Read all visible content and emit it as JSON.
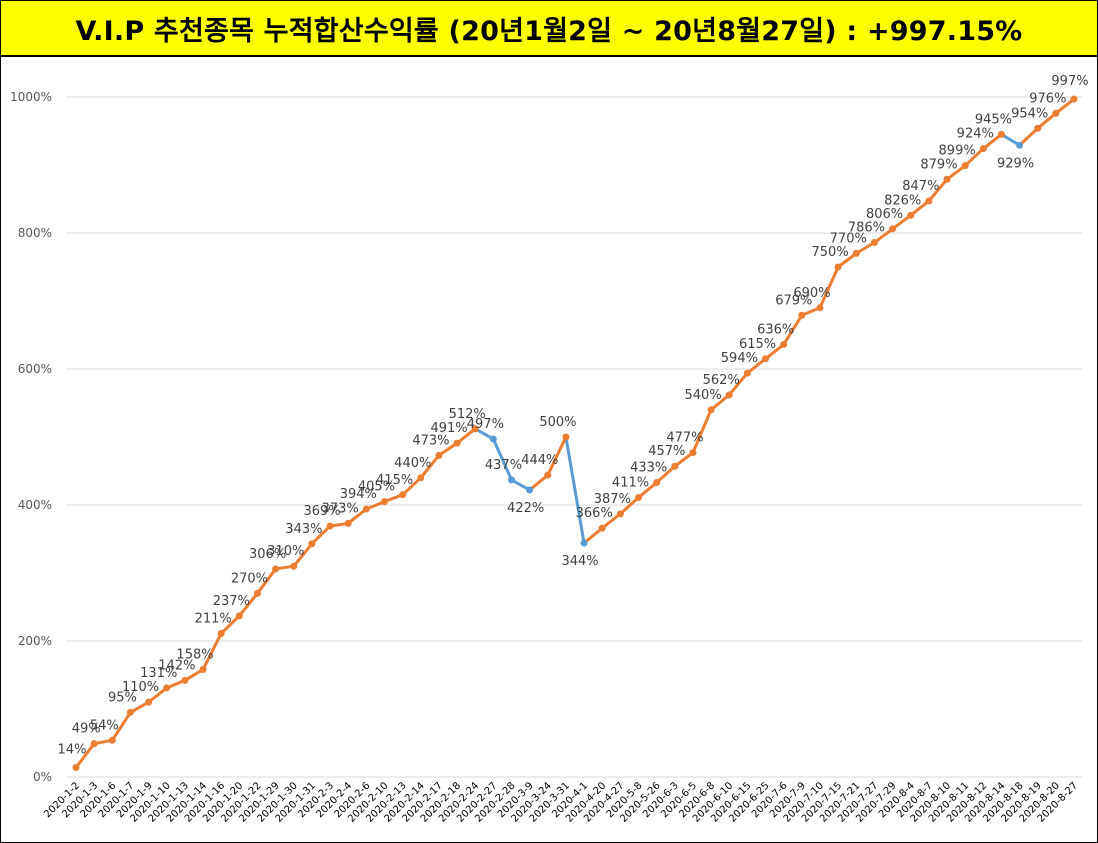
{
  "header": {
    "title": "V.I.P 추천종목 누적합산수익률 (20년1월2일 ~ 20년8월27일) : +997.15%"
  },
  "colors": {
    "title_background": "#ffff00",
    "line_up": "#ed7d31",
    "line_down": "#5b9bd5",
    "gridline": "#d9d9d9"
  },
  "chart_data": {
    "type": "line",
    "title": "",
    "xlabel": "",
    "ylabel": "",
    "ylim": [
      0,
      1000
    ],
    "yticks": [
      "0%",
      "200%",
      "400%",
      "600%",
      "800%",
      "1000%"
    ],
    "ytick_values": [
      0,
      200,
      400,
      600,
      800,
      1000
    ],
    "grid": true,
    "legend": "none",
    "segment_coloring": "orange for rising segments, blue for falling segments",
    "categories": [
      "2020-1-2",
      "2020-1-3",
      "2020-1-6",
      "2020-1-7",
      "2020-1-9",
      "2020-1-10",
      "2020-1-13",
      "2020-1-14",
      "2020-1-16",
      "2020-1-20",
      "2020-1-22",
      "2020-1-29",
      "2020-1-30",
      "2020-1-31",
      "2020-2-3",
      "2020-2-4",
      "2020-2-6",
      "2020-2-10",
      "2020-2-13",
      "2020-2-14",
      "2020-2-17",
      "2020-2-18",
      "2020-2-24",
      "2020-2-27",
      "2020-2-28",
      "2020-3-9",
      "2020-3-24",
      "2020-3-31",
      "2020-4-1",
      "2020-4-20",
      "2020-4-27",
      "2020-5-8",
      "2020-5-26",
      "2020-6-3",
      "2020-6-5",
      "2020-6-8",
      "2020-6-10",
      "2020-6-15",
      "2020-6-25",
      "2020-7-6",
      "2020-7-9",
      "2020-7-10",
      "2020-7-15",
      "2020-7-21",
      "2020-7-27",
      "2020-7-29",
      "2020-8-4",
      "2020-8-7",
      "2020-8-10",
      "2020-8-11",
      "2020-8-12",
      "2020-8-14",
      "2020-8-18",
      "2020-8-19",
      "2020-8-20",
      "2020-8-27"
    ],
    "values": [
      14,
      49,
      54,
      95,
      110,
      131,
      142,
      158,
      211,
      237,
      270,
      306,
      310,
      343,
      369,
      373,
      394,
      405,
      415,
      440,
      473,
      491,
      512,
      497,
      437,
      422,
      444,
      500,
      344,
      366,
      387,
      411,
      433,
      457,
      477,
      540,
      562,
      594,
      615,
      636,
      679,
      690,
      750,
      770,
      786,
      806,
      826,
      847,
      879,
      899,
      924,
      945,
      929,
      954,
      976,
      997
    ],
    "labels": [
      "14%",
      "49%",
      "54%",
      "95%",
      "110%",
      "131%",
      "142%",
      "158%",
      "211%",
      "237%",
      "270%",
      "306%",
      "310%",
      "343%",
      "369%",
      "373%",
      "394%",
      "405%",
      "415%",
      "440%",
      "473%",
      "491%",
      "512%",
      "497%",
      "437%",
      "422%",
      "444%",
      "500%",
      "344%",
      "366%",
      "387%",
      "411%",
      "433%",
      "457%",
      "477%",
      "540%",
      "562%",
      "594%",
      "615%",
      "636%",
      "679%",
      "690%",
      "750%",
      "770%",
      "786%",
      "806%",
      "826%",
      "847%",
      "879%",
      "899%",
      "924%",
      "945%",
      "929%",
      "954%",
      "976%",
      "997%"
    ]
  }
}
